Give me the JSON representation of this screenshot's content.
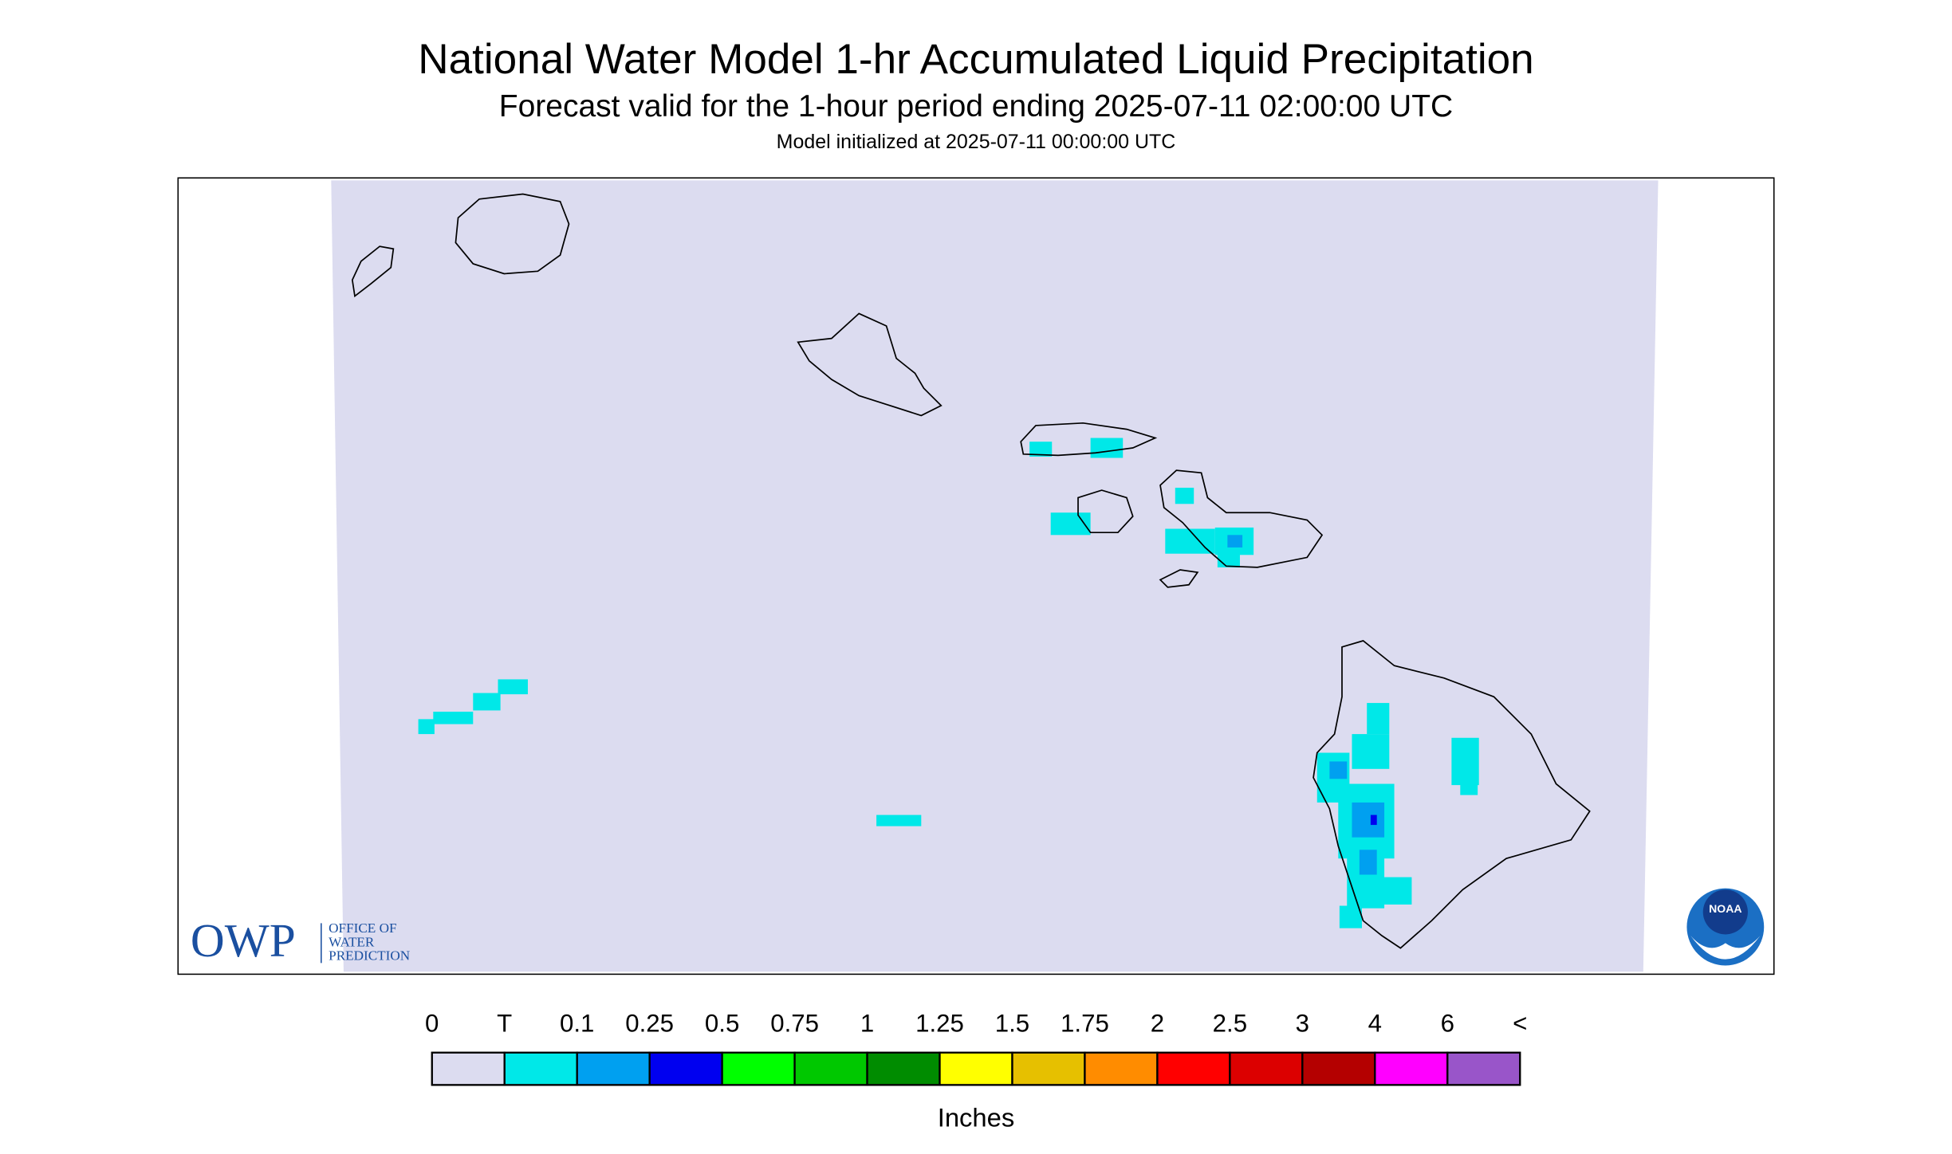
{
  "header": {
    "title": "National Water Model 1-hr Accumulated Liquid Precipitation",
    "subtitle": "Forecast valid for the 1-hour period ending 2025-07-11 02:00:00 UTC",
    "init": "Model initialized at 2025-07-11 00:00:00 UTC"
  },
  "legend": {
    "labels": [
      "0",
      "T",
      "0.1",
      "0.25",
      "0.5",
      "0.75",
      "1",
      "1.25",
      "1.5",
      "1.75",
      "2",
      "2.5",
      "3",
      "4",
      "6",
      "<"
    ],
    "colors": [
      "#dcdcf0",
      "#00e8e8",
      "#00a0f0",
      "#0000f0",
      "#00ff00",
      "#00c800",
      "#008c00",
      "#ffff00",
      "#e6c000",
      "#ff8c00",
      "#ff0000",
      "#dc0000",
      "#b40000",
      "#ff00ff",
      "#9955c9"
    ],
    "unit": "Inches"
  },
  "logos": {
    "owp": "OWP",
    "owp_lines": [
      "OFFICE OF",
      "WATER",
      "PREDICTION"
    ],
    "noaa": "NOAA"
  }
}
